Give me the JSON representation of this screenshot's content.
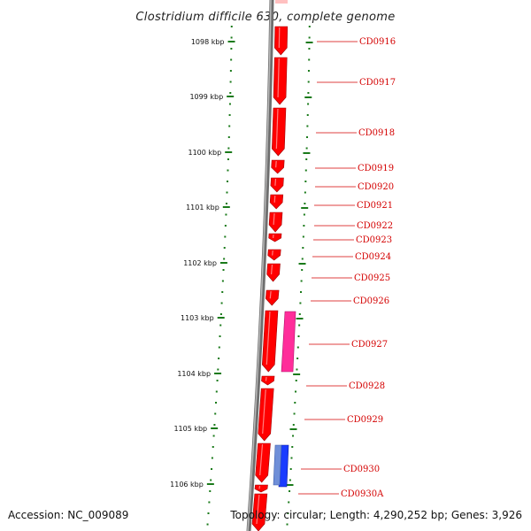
{
  "title": "Clostridium difficile 630, complete genome",
  "footer": {
    "accession": "Accession: NC_009089",
    "summary": "Topology: circular; Length: 4,290,252 bp; Genes: 3,926"
  },
  "scale": {
    "unit": "kbp",
    "ticks": [
      "1098 kbp",
      "1099 kbp",
      "1100 kbp",
      "1101 kbp",
      "1102 kbp",
      "1103 kbp",
      "1104 kbp",
      "1105 kbp",
      "1106 kbp"
    ]
  },
  "genes": [
    {
      "name": "CD0916",
      "color": "#ff0000"
    },
    {
      "name": "CD0917",
      "color": "#ff0000"
    },
    {
      "name": "CD0918",
      "color": "#ff0000"
    },
    {
      "name": "CD0919",
      "color": "#ff0000"
    },
    {
      "name": "CD0920",
      "color": "#ff0000"
    },
    {
      "name": "CD0921",
      "color": "#ff0000"
    },
    {
      "name": "CD0922",
      "color": "#ff0000"
    },
    {
      "name": "CD0923",
      "color": "#ff0000"
    },
    {
      "name": "CD0924",
      "color": "#ff0000"
    },
    {
      "name": "CD0925",
      "color": "#ff0000"
    },
    {
      "name": "CD0926",
      "color": "#ff0000"
    },
    {
      "name": "CD0927",
      "color": "#ff0000"
    },
    {
      "name": "CD0928",
      "color": "#ff0000"
    },
    {
      "name": "CD0929",
      "color": "#ff0000"
    },
    {
      "name": "CD0930",
      "color": "#ff0000"
    },
    {
      "name": "CD0930A",
      "color": "#ff0000"
    }
  ],
  "features": [
    {
      "name": "pink-feature",
      "color": "#ff2d9a"
    },
    {
      "name": "blue-feature",
      "color": "#1a3cff"
    },
    {
      "name": "light-blue-feature",
      "color": "#6f8fd8"
    }
  ],
  "colors": {
    "gene": "#ff0000",
    "backbone": "#8a8a8a",
    "tick": "#1a7a1a",
    "label": "#d40000"
  }
}
